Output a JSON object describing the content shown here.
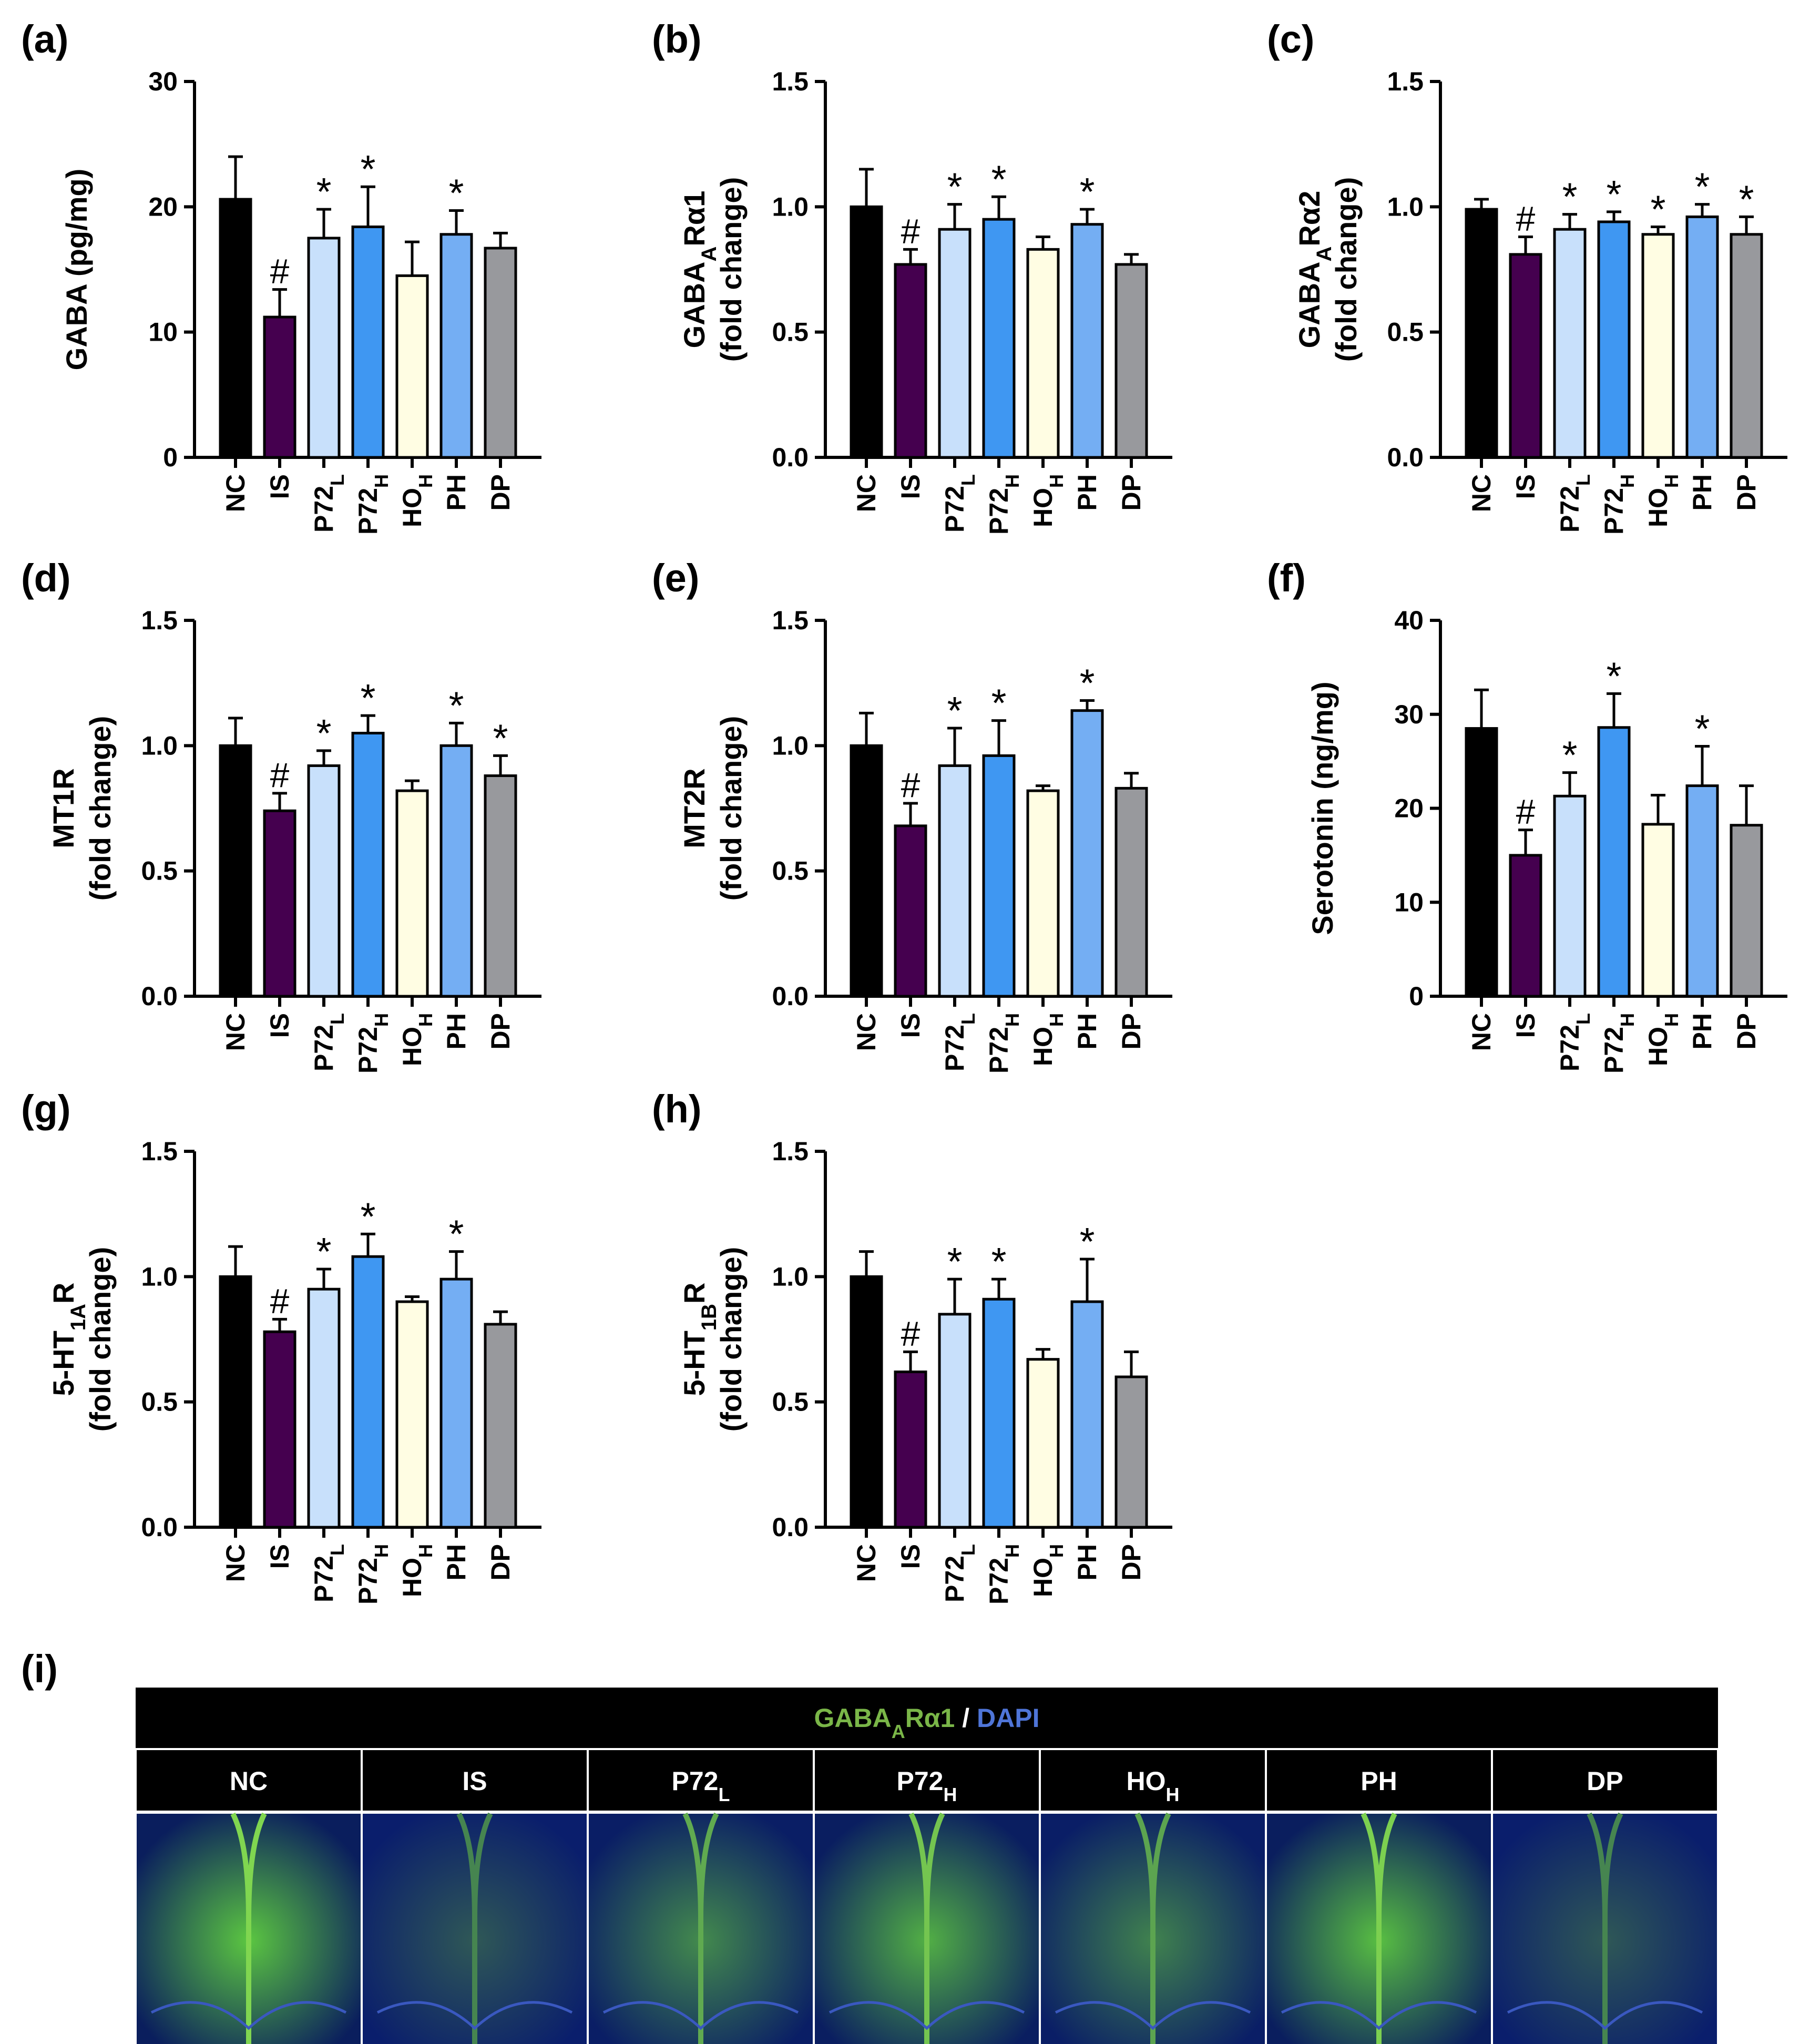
{
  "colors": {
    "NC": "#000000",
    "IS": "#45004f",
    "P72L": "#c8e0fb",
    "P72H": "#3f97f2",
    "HOH": "#fffde3",
    "PH": "#74aef3",
    "DP": "#98999d",
    "gaba_green": "#7ab648",
    "dapi_blue": "#4f75d8"
  },
  "categories": [
    {
      "key": "NC",
      "base": "NC",
      "sub": ""
    },
    {
      "key": "IS",
      "base": "IS",
      "sub": ""
    },
    {
      "key": "P72L",
      "base": "P72",
      "sub": "L"
    },
    {
      "key": "P72H",
      "base": "P72",
      "sub": "H"
    },
    {
      "key": "HOH",
      "base": "HO",
      "sub": "H"
    },
    {
      "key": "PH",
      "base": "PH",
      "sub": ""
    },
    {
      "key": "DP",
      "base": "DP",
      "sub": ""
    }
  ],
  "chart_data": [
    {
      "id": "a",
      "letter": "(a)",
      "type": "bar",
      "ylabel_lines": [
        [
          {
            "t": "GABA (pg/mg)"
          }
        ]
      ],
      "ylim": [
        0,
        30
      ],
      "ticks": [
        "0",
        "10",
        "20",
        "30"
      ],
      "values": [
        20.6,
        11.2,
        17.5,
        18.4,
        14.5,
        17.8,
        16.7
      ],
      "errors": [
        3.4,
        2.2,
        2.3,
        3.2,
        2.7,
        1.9,
        1.2
      ],
      "marks": [
        "",
        "#",
        "*",
        "*",
        "",
        "*",
        ""
      ]
    },
    {
      "id": "b",
      "letter": "(b)",
      "type": "bar",
      "ylabel_lines": [
        [
          {
            "t": "GABA"
          },
          {
            "t": "A",
            "sub": true
          },
          {
            "t": "Rα1"
          }
        ],
        [
          {
            "t": "(fold change)"
          }
        ]
      ],
      "ylim": [
        0,
        1.5
      ],
      "ticks": [
        "0.0",
        "0.5",
        "1.0",
        "1.5"
      ],
      "values": [
        1.0,
        0.77,
        0.91,
        0.95,
        0.83,
        0.93,
        0.77
      ],
      "errors": [
        0.15,
        0.06,
        0.1,
        0.09,
        0.05,
        0.06,
        0.04
      ],
      "marks": [
        "",
        "#",
        "*",
        "*",
        "",
        "*",
        ""
      ]
    },
    {
      "id": "c",
      "letter": "(c)",
      "type": "bar",
      "ylabel_lines": [
        [
          {
            "t": "GABA"
          },
          {
            "t": "A",
            "sub": true
          },
          {
            "t": "Rα2"
          }
        ],
        [
          {
            "t": "(fold change)"
          }
        ]
      ],
      "ylim": [
        0,
        1.5
      ],
      "ticks": [
        "0.0",
        "0.5",
        "1.0",
        "1.5"
      ],
      "values": [
        0.99,
        0.81,
        0.91,
        0.94,
        0.89,
        0.96,
        0.89
      ],
      "errors": [
        0.04,
        0.07,
        0.06,
        0.04,
        0.03,
        0.05,
        0.07
      ],
      "marks": [
        "",
        "#",
        "*",
        "*",
        "*",
        "*",
        "*"
      ]
    },
    {
      "id": "d",
      "letter": "(d)",
      "type": "bar",
      "ylabel_lines": [
        [
          {
            "t": "MT1R"
          }
        ],
        [
          {
            "t": "(fold change)"
          }
        ]
      ],
      "ylim": [
        0,
        1.5
      ],
      "ticks": [
        "0.0",
        "0.5",
        "1.0",
        "1.5"
      ],
      "values": [
        1.0,
        0.74,
        0.92,
        1.05,
        0.82,
        1.0,
        0.88
      ],
      "errors": [
        0.11,
        0.07,
        0.06,
        0.07,
        0.04,
        0.09,
        0.08
      ],
      "marks": [
        "",
        "#",
        "*",
        "*",
        "",
        "*",
        "*"
      ]
    },
    {
      "id": "e",
      "letter": "(e)",
      "type": "bar",
      "ylabel_lines": [
        [
          {
            "t": "MT2R"
          }
        ],
        [
          {
            "t": "(fold change)"
          }
        ]
      ],
      "ylim": [
        0,
        1.5
      ],
      "ticks": [
        "0.0",
        "0.5",
        "1.0",
        "1.5"
      ],
      "values": [
        1.0,
        0.68,
        0.92,
        0.96,
        0.82,
        1.14,
        0.83
      ],
      "errors": [
        0.13,
        0.09,
        0.15,
        0.14,
        0.02,
        0.04,
        0.06
      ],
      "marks": [
        "",
        "#",
        "*",
        "*",
        "",
        "*",
        ""
      ]
    },
    {
      "id": "f",
      "letter": "(f)",
      "type": "bar",
      "ylabel_lines": [
        [
          {
            "t": "Serotonin (ng/mg)"
          }
        ]
      ],
      "ylim": [
        0,
        40
      ],
      "ticks": [
        "0",
        "10",
        "20",
        "30",
        "40"
      ],
      "values": [
        28.5,
        15.0,
        21.3,
        28.6,
        18.3,
        22.4,
        18.2
      ],
      "errors": [
        4.1,
        2.7,
        2.5,
        3.6,
        3.1,
        4.2,
        4.2
      ],
      "marks": [
        "",
        "#",
        "*",
        "*",
        "",
        "*",
        ""
      ]
    },
    {
      "id": "g",
      "letter": "(g)",
      "type": "bar",
      "ylabel_lines": [
        [
          {
            "t": "5-HT"
          },
          {
            "t": "1A",
            "sub": true
          },
          {
            "t": "R"
          }
        ],
        [
          {
            "t": "(fold change)"
          }
        ]
      ],
      "ylim": [
        0,
        1.5
      ],
      "ticks": [
        "0.0",
        "0.5",
        "1.0",
        "1.5"
      ],
      "values": [
        1.0,
        0.78,
        0.95,
        1.08,
        0.9,
        0.99,
        0.81
      ],
      "errors": [
        0.12,
        0.05,
        0.08,
        0.09,
        0.02,
        0.11,
        0.05
      ],
      "marks": [
        "",
        "#",
        "*",
        "*",
        "",
        "*",
        ""
      ]
    },
    {
      "id": "h",
      "letter": "(h)",
      "type": "bar",
      "ylabel_lines": [
        [
          {
            "t": "5-HT"
          },
          {
            "t": "1B",
            "sub": true
          },
          {
            "t": "R"
          }
        ],
        [
          {
            "t": "(fold change)"
          }
        ]
      ],
      "ylim": [
        0,
        1.5
      ],
      "ticks": [
        "0.0",
        "0.5",
        "1.0",
        "1.5"
      ],
      "values": [
        1.0,
        0.62,
        0.85,
        0.91,
        0.67,
        0.9,
        0.6
      ],
      "errors": [
        0.1,
        0.08,
        0.14,
        0.08,
        0.04,
        0.17,
        0.1
      ],
      "marks": [
        "",
        "#",
        "*",
        "*",
        "",
        "*",
        ""
      ]
    }
  ],
  "image_panel": {
    "letter": "(i)",
    "title": [
      {
        "t": "GABA",
        "color": "green"
      },
      {
        "t": "A",
        "color": "green",
        "sub": true
      },
      {
        "t": "Rα1",
        "color": "green"
      },
      {
        "t": " / ",
        "color": "white"
      },
      {
        "t": "DAPI",
        "color": "blue"
      }
    ],
    "groups": [
      "NC",
      "IS",
      "P72L",
      "P72H",
      "HOH",
      "PH",
      "DP"
    ],
    "green_intensity": [
      0.85,
      0.12,
      0.45,
      0.7,
      0.4,
      0.8,
      0.12
    ]
  }
}
